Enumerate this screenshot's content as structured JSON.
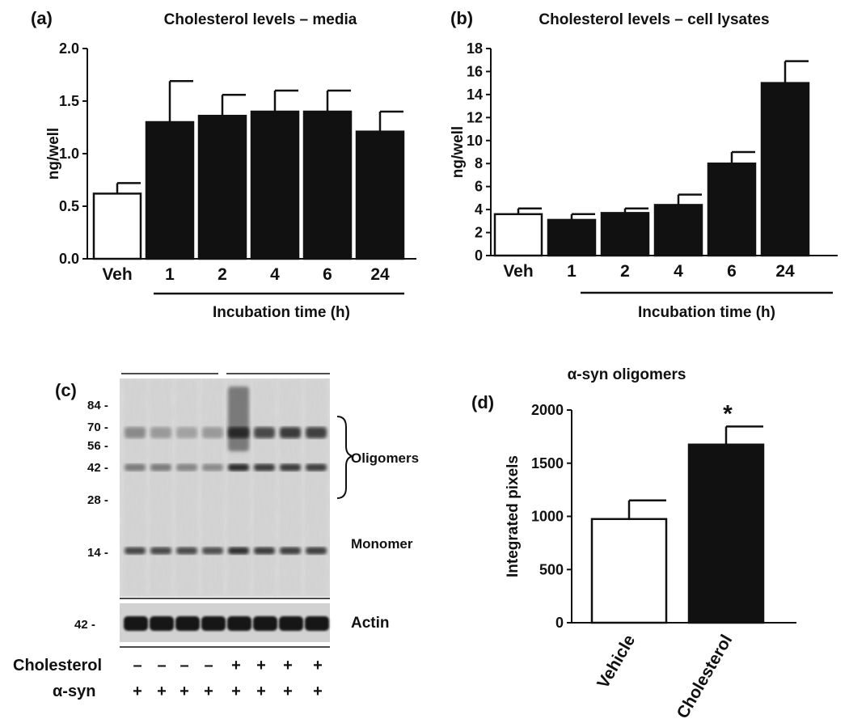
{
  "panel_labels": [
    "(a)",
    "(b)",
    "(c)",
    "(d)"
  ],
  "chart_data": [
    {
      "id": "a",
      "type": "bar",
      "title": "Cholesterol levels – media",
      "ylabel": "ng/well",
      "xlabel": "Incubation time (h)",
      "categories": [
        "Veh",
        "1",
        "2",
        "4",
        "6",
        "24"
      ],
      "values": [
        0.62,
        1.3,
        1.36,
        1.4,
        1.4,
        1.21
      ],
      "errors": [
        0.1,
        0.39,
        0.2,
        0.2,
        0.2,
        0.19
      ],
      "fills": [
        "#ffffff",
        "#111111",
        "#111111",
        "#111111",
        "#111111",
        "#111111"
      ],
      "ylim": [
        0,
        2.0
      ],
      "yticks": [
        "0.0",
        "0.5",
        "1.0",
        "1.5",
        "2.0"
      ]
    },
    {
      "id": "b",
      "type": "bar",
      "title": "Cholesterol levels – cell lysates",
      "ylabel": "ng/well",
      "xlabel": "Incubation time (h)",
      "categories": [
        "Veh",
        "1",
        "2",
        "4",
        "6",
        "24"
      ],
      "values": [
        3.6,
        3.1,
        3.7,
        4.4,
        8.0,
        15.0
      ],
      "errors": [
        0.5,
        0.5,
        0.4,
        0.9,
        1.0,
        1.9
      ],
      "fills": [
        "#ffffff",
        "#111111",
        "#111111",
        "#111111",
        "#111111",
        "#111111"
      ],
      "ylim": [
        0,
        18
      ],
      "yticks": [
        "0",
        "2",
        "4",
        "6",
        "8",
        "10",
        "12",
        "14",
        "16",
        "18"
      ]
    },
    {
      "id": "d",
      "type": "bar",
      "title": "α-syn oligomers",
      "ylabel": "Integrated pixels",
      "categories": [
        "Vehicle",
        "Cholesterol"
      ],
      "values": [
        975,
        1675
      ],
      "errors": [
        175,
        170
      ],
      "fills": [
        "#ffffff",
        "#111111"
      ],
      "ylim": [
        0,
        2000
      ],
      "yticks": [
        "0",
        "500",
        "1000",
        "1500",
        "2000"
      ],
      "annotation": "*"
    }
  ],
  "blot": {
    "mw_markers": [
      "84 -",
      "70 -",
      "56 -",
      "42 -",
      "28 -",
      "14 -"
    ],
    "actin_marker": "42 -",
    "labels": {
      "oligomers": "Oligomers",
      "monomer": "Monomer",
      "actin": "Actin"
    },
    "row_labels": {
      "cholesterol": "Cholesterol",
      "asyn": "α-syn"
    },
    "cholesterol_signs": [
      "–",
      "–",
      "–",
      "–",
      "+",
      "+",
      "+",
      "+"
    ],
    "asyn_signs": [
      "+",
      "+",
      "+",
      "+",
      "+",
      "+",
      "+",
      "+"
    ]
  }
}
